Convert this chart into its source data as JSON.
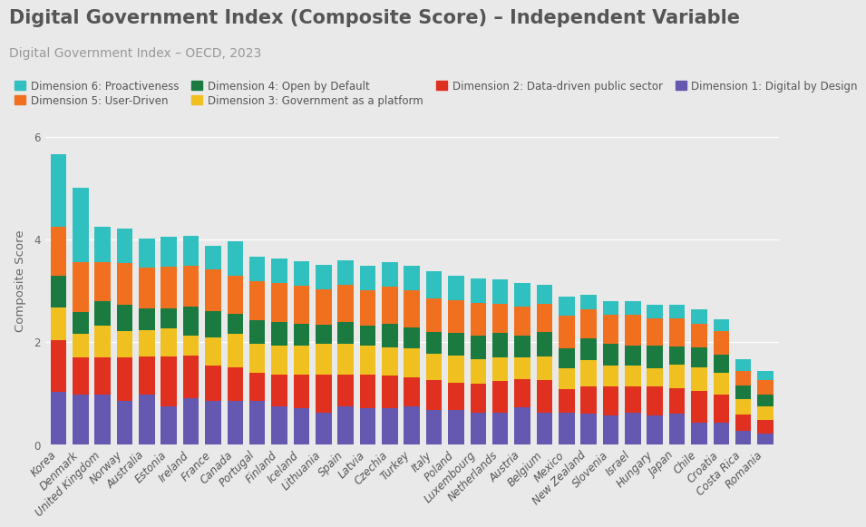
{
  "title": "Digital Government Index (Composite Score) – Independent Variable",
  "subtitle": "Digital Government Index – OECD, 2023",
  "ylabel": "Composite Score",
  "background_color": "#e9e9e9",
  "plot_background": "#e9e9e9",
  "countries": [
    "Korea",
    "Denmark",
    "United Kingdom",
    "Norway",
    "Australia",
    "Estonia",
    "Ireland",
    "France",
    "Canada",
    "Portugal",
    "Finland",
    "Iceland",
    "Lithuania",
    "Spain",
    "Latvia",
    "Czechia",
    "Turkey",
    "Italy",
    "Poland",
    "Luxembourg",
    "Netherlands",
    "Austria",
    "Belgium",
    "Mexico",
    "New Zealand",
    "Slovenia",
    "Israel",
    "Hungary",
    "Japan",
    "Chile",
    "Croatia",
    "Costa Rica",
    "Romania"
  ],
  "dimensions": {
    "dim1": {
      "label": "Dimension 1: Digital by Design",
      "color": "#6558b1",
      "values": [
        1.02,
        0.97,
        0.97,
        0.84,
        0.97,
        0.75,
        0.9,
        0.84,
        0.84,
        0.84,
        0.75,
        0.7,
        0.62,
        0.75,
        0.7,
        0.7,
        0.75,
        0.67,
        0.67,
        0.62,
        0.62,
        0.72,
        0.62,
        0.62,
        0.6,
        0.57,
        0.62,
        0.57,
        0.6,
        0.42,
        0.42,
        0.27,
        0.22
      ]
    },
    "dim2": {
      "label": "Dimension 2: Data-driven public sector",
      "color": "#e03020",
      "values": [
        1.02,
        0.73,
        0.73,
        0.86,
        0.74,
        0.96,
        0.83,
        0.69,
        0.66,
        0.56,
        0.61,
        0.66,
        0.74,
        0.61,
        0.66,
        0.64,
        0.56,
        0.59,
        0.54,
        0.56,
        0.61,
        0.56,
        0.63,
        0.46,
        0.53,
        0.56,
        0.51,
        0.56,
        0.49,
        0.63,
        0.56,
        0.31,
        0.26
      ]
    },
    "dim3": {
      "label": "Dimension 3: Government as a platform",
      "color": "#f0c020",
      "values": [
        0.63,
        0.46,
        0.61,
        0.51,
        0.51,
        0.56,
        0.39,
        0.56,
        0.66,
        0.56,
        0.56,
        0.56,
        0.61,
        0.61,
        0.56,
        0.56,
        0.56,
        0.51,
        0.53,
        0.49,
        0.46,
        0.41,
        0.46,
        0.41,
        0.51,
        0.41,
        0.41,
        0.36,
        0.46,
        0.46,
        0.41,
        0.31,
        0.26
      ]
    },
    "dim4": {
      "label": "Dimension 4: Open by Default",
      "color": "#1a7a40",
      "values": [
        0.61,
        0.43,
        0.49,
        0.51,
        0.43,
        0.39,
        0.56,
        0.51,
        0.39,
        0.46,
        0.46,
        0.43,
        0.36,
        0.41,
        0.39,
        0.46,
        0.41,
        0.43,
        0.43,
        0.46,
        0.49,
        0.43,
        0.49,
        0.39,
        0.43,
        0.43,
        0.39,
        0.43,
        0.36,
        0.39,
        0.36,
        0.26,
        0.23
      ]
    },
    "dim5": {
      "label": "Dimension 5: User-Driven",
      "color": "#f07020",
      "values": [
        0.97,
        0.97,
        0.76,
        0.81,
        0.79,
        0.81,
        0.81,
        0.81,
        0.73,
        0.76,
        0.76,
        0.74,
        0.69,
        0.73,
        0.69,
        0.71,
        0.73,
        0.64,
        0.64,
        0.63,
        0.56,
        0.56,
        0.54,
        0.63,
        0.56,
        0.56,
        0.59,
        0.53,
        0.54,
        0.46,
        0.46,
        0.29,
        0.29
      ]
    },
    "dim6": {
      "label": "Dimension 6: Proactiveness",
      "color": "#30c0c0",
      "values": [
        1.4,
        1.44,
        0.68,
        0.68,
        0.58,
        0.58,
        0.58,
        0.46,
        0.68,
        0.48,
        0.48,
        0.48,
        0.48,
        0.48,
        0.48,
        0.48,
        0.48,
        0.53,
        0.48,
        0.48,
        0.48,
        0.46,
        0.38,
        0.38,
        0.28,
        0.26,
        0.28,
        0.28,
        0.28,
        0.28,
        0.23,
        0.23,
        0.18
      ]
    }
  },
  "ylim": [
    0,
    6.4
  ],
  "yticks": [
    0,
    2,
    4,
    6
  ],
  "grid_color": "#ffffff",
  "title_fontsize": 15,
  "subtitle_fontsize": 10,
  "tick_fontsize": 8.5,
  "legend_fontsize": 8.5
}
